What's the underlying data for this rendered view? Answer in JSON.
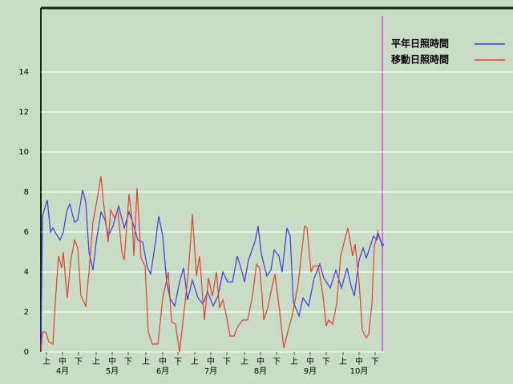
{
  "chart_data": {
    "type": "line",
    "ylim": [
      0,
      17.2
    ],
    "yticks": [
      0,
      2,
      4,
      6,
      8,
      10,
      12,
      14
    ],
    "grid": true,
    "xlim": [
      0,
      214
    ],
    "xticks": [
      {
        "value": 3.5,
        "label": "上"
      },
      {
        "value": 13.5,
        "label": "中"
      },
      {
        "value": 23.5,
        "label": "下"
      },
      {
        "value": 34.5,
        "label": "上"
      },
      {
        "value": 44.5,
        "label": "中"
      },
      {
        "value": 54.5,
        "label": "下"
      },
      {
        "value": 65.5,
        "label": "上"
      },
      {
        "value": 76,
        "label": "中"
      },
      {
        "value": 85.5,
        "label": "下"
      },
      {
        "value": 96,
        "label": "上"
      },
      {
        "value": 106,
        "label": "中"
      },
      {
        "value": 116,
        "label": "下"
      },
      {
        "value": 127,
        "label": "上"
      },
      {
        "value": 137,
        "label": "中"
      },
      {
        "value": 147,
        "label": "下"
      },
      {
        "value": 158,
        "label": "上"
      },
      {
        "value": 168,
        "label": "中"
      },
      {
        "value": 178,
        "label": "下"
      },
      {
        "value": 188.5,
        "label": "上"
      },
      {
        "value": 198.5,
        "label": "中"
      },
      {
        "value": 208.5,
        "label": "下"
      }
    ],
    "month_ticks": [
      {
        "value": 13.5,
        "label": "4月"
      },
      {
        "value": 44.5,
        "label": "5月"
      },
      {
        "value": 76,
        "label": "6月"
      },
      {
        "value": 106,
        "label": "7月"
      },
      {
        "value": 137,
        "label": "8月"
      },
      {
        "value": 168,
        "label": "9月"
      },
      {
        "value": 198.5,
        "label": "10月"
      }
    ],
    "series": [
      {
        "name": "平年日照時間",
        "color": "#3a3ae0",
        "x": [
          0,
          1,
          4,
          6,
          7.5,
          9.5,
          12,
          14,
          16,
          18,
          21,
          23,
          26,
          28,
          30,
          32.5,
          34.5,
          37.5,
          40,
          42,
          45,
          48.5,
          52,
          55,
          58,
          60.5,
          63.5,
          66.5,
          68.5,
          71.5,
          73.5,
          76,
          78.5,
          80.5,
          83.5,
          86.5,
          89,
          91.5,
          94.5,
          98,
          101,
          104,
          107.5,
          110.5,
          113.5,
          116.5,
          119.5,
          122.5,
          125.5,
          127,
          129.5,
          133.5,
          135.5,
          137.5,
          141,
          143.5,
          145.5,
          148.5,
          150.5,
          153.5,
          155.5,
          157.5,
          161,
          163.5,
          167,
          170.5,
          174,
          176.5,
          180.5,
          184,
          187.5,
          191,
          193.5,
          195.5,
          198.5,
          201,
          203,
          205.5,
          207.5,
          209.5,
          210.5,
          213,
          214
        ],
        "values": [
          0,
          6.8,
          7.6,
          6,
          6.2,
          5.9,
          5.6,
          6,
          7,
          7.4,
          6.5,
          6.6,
          8.1,
          7.5,
          5,
          4.1,
          5.5,
          7,
          6.6,
          5.8,
          6.3,
          7.3,
          6.2,
          7,
          6.3,
          5.6,
          5.5,
          4.2,
          3.9,
          5.5,
          6.8,
          5.8,
          3.5,
          2.7,
          2.3,
          3.5,
          4.2,
          2.6,
          3.6,
          2.7,
          2.4,
          3,
          2.3,
          2.8,
          4,
          3.5,
          3.5,
          4.8,
          4,
          3.5,
          4.6,
          5.5,
          6.3,
          4.9,
          3.8,
          4.1,
          5.1,
          4.8,
          4,
          6.2,
          5.8,
          2.5,
          1.8,
          2.7,
          2.3,
          3.7,
          4.4,
          3.7,
          3.2,
          4.1,
          3.2,
          4.2,
          3.3,
          2.8,
          4.6,
          5.2,
          4.7,
          5.3,
          5.8,
          5.6,
          5.9,
          5.3,
          5.4
        ]
      },
      {
        "name": "移動日照時間",
        "color": "#e04030",
        "x": [
          0,
          1,
          3,
          5,
          7.5,
          9,
          11,
          13,
          14,
          15.5,
          16.5,
          18.5,
          21,
          23,
          25,
          28,
          30,
          32.5,
          35,
          37.5,
          39,
          42,
          43.5,
          46,
          48,
          50.5,
          52,
          55,
          57,
          58,
          60,
          62.5,
          65,
          67,
          69.5,
          73,
          76,
          79.5,
          81.5,
          84,
          86.5,
          89,
          92,
          94.5,
          97,
          99,
          102,
          104.5,
          107,
          109.5,
          111.5,
          113.5,
          115.5,
          118,
          120.5,
          123,
          126,
          129,
          132,
          134.5,
          136.5,
          138,
          139,
          141.5,
          143.5,
          146,
          149,
          151.5,
          154,
          157,
          160.5,
          164.5,
          166,
          168.5,
          170,
          173,
          176,
          178,
          179.5,
          182,
          184.5,
          187,
          189.5,
          191.5,
          194.5,
          196,
          198.5,
          200.5,
          203,
          204.5,
          206.5,
          208,
          209,
          210.5
        ],
        "values": [
          0,
          1,
          1,
          0.5,
          0.4,
          2.5,
          4.8,
          4.2,
          5,
          3.5,
          2.7,
          4.5,
          5.6,
          5.2,
          2.8,
          2.3,
          4,
          6.5,
          7.6,
          8.8,
          7.5,
          5.5,
          7.1,
          6.7,
          7.1,
          5,
          4.6,
          7.9,
          6.5,
          4.8,
          8.2,
          4.7,
          4.3,
          1,
          0.4,
          0.4,
          2.7,
          4,
          1.5,
          1.4,
          0,
          1.8,
          4,
          6.9,
          3.8,
          4.8,
          1.6,
          3.7,
          2.8,
          4,
          2.2,
          2.6,
          1.9,
          0.8,
          0.8,
          1.3,
          1.6,
          1.6,
          2.8,
          4.4,
          4.2,
          2.8,
          1.6,
          2.2,
          3,
          3.9,
          2,
          0.2,
          1,
          1.9,
          3.4,
          6.3,
          6.2,
          4,
          4.3,
          4.3,
          2.8,
          1.3,
          1.6,
          1.4,
          2.4,
          4.8,
          5.6,
          6.2,
          4.8,
          5.4,
          3.5,
          1.1,
          0.7,
          0.9,
          2.4,
          5.3,
          5.6,
          6.1
        ]
      }
    ]
  }
}
